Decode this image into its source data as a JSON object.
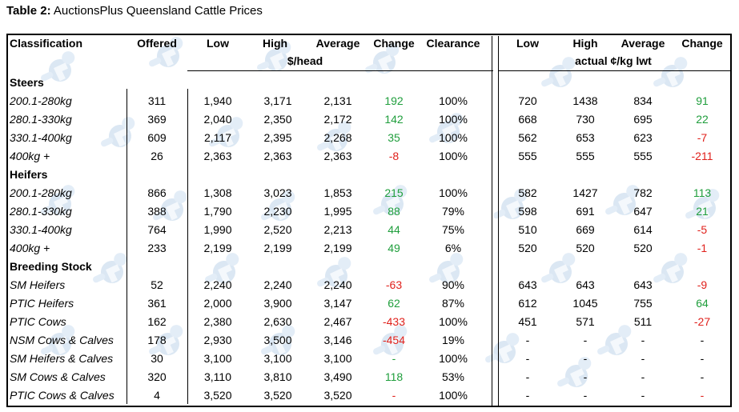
{
  "title": {
    "prefix": "Table 2:",
    "text": " AuctionsPlus Queensland Cattle Prices"
  },
  "headers": {
    "classification": "Classification",
    "offered": "Offered",
    "low": "Low",
    "high": "High",
    "average": "Average",
    "change": "Change",
    "clearance": "Clearance",
    "head_unit": "$/head",
    "low2": "Low",
    "high2": "High",
    "average2": "Average",
    "change2": "Change",
    "kg_unit": "actual ¢/kg lwt"
  },
  "colors": {
    "positive": "#1f9e3c",
    "negative": "#e0211c"
  },
  "watermark_icon": "auctionsplus-logo-watermark",
  "sections": [
    {
      "name": "Steers",
      "rows": [
        {
          "label": "200.1-280kg",
          "offered": "311",
          "low": "1,940",
          "high": "3,171",
          "average": "2,131",
          "change": "192",
          "change_sign": "pos",
          "clearance": "100%",
          "kg_low": "720",
          "kg_high": "1438",
          "kg_avg": "834",
          "kg_change": "91",
          "kg_change_sign": "pos"
        },
        {
          "label": "280.1-330kg",
          "offered": "369",
          "low": "2,040",
          "high": "2,350",
          "average": "2,172",
          "change": "142",
          "change_sign": "pos",
          "clearance": "100%",
          "kg_low": "668",
          "kg_high": "730",
          "kg_avg": "695",
          "kg_change": "22",
          "kg_change_sign": "pos"
        },
        {
          "label": "330.1-400kg",
          "offered": "609",
          "low": "2,117",
          "high": "2,395",
          "average": "2,268",
          "change": "35",
          "change_sign": "pos",
          "clearance": "100%",
          "kg_low": "562",
          "kg_high": "653",
          "kg_avg": "623",
          "kg_change": "-7",
          "kg_change_sign": "neg"
        },
        {
          "label": "400kg +",
          "offered": "26",
          "low": "2,363",
          "high": "2,363",
          "average": "2,363",
          "change": "-8",
          "change_sign": "neg",
          "clearance": "100%",
          "kg_low": "555",
          "kg_high": "555",
          "kg_avg": "555",
          "kg_change": "-211",
          "kg_change_sign": "neg"
        }
      ]
    },
    {
      "name": "Heifers",
      "rows": [
        {
          "label": "200.1-280kg",
          "offered": "866",
          "low": "1,308",
          "high": "3,023",
          "average": "1,853",
          "change": "215",
          "change_sign": "pos",
          "clearance": "100%",
          "kg_low": "582",
          "kg_high": "1427",
          "kg_avg": "782",
          "kg_change": "113",
          "kg_change_sign": "pos"
        },
        {
          "label": "280.1-330kg",
          "offered": "388",
          "low": "1,790",
          "high": "2,230",
          "average": "1,995",
          "change": "88",
          "change_sign": "pos",
          "clearance": "79%",
          "kg_low": "598",
          "kg_high": "691",
          "kg_avg": "647",
          "kg_change": "21",
          "kg_change_sign": "pos"
        },
        {
          "label": "330.1-400kg",
          "offered": "764",
          "low": "1,990",
          "high": "2,520",
          "average": "2,213",
          "change": "44",
          "change_sign": "pos",
          "clearance": "75%",
          "kg_low": "510",
          "kg_high": "669",
          "kg_avg": "614",
          "kg_change": "-5",
          "kg_change_sign": "neg"
        },
        {
          "label": "400kg +",
          "offered": "233",
          "low": "2,199",
          "high": "2,199",
          "average": "2,199",
          "change": "49",
          "change_sign": "pos",
          "clearance": "6%",
          "kg_low": "520",
          "kg_high": "520",
          "kg_avg": "520",
          "kg_change": "-1",
          "kg_change_sign": "neg"
        }
      ]
    },
    {
      "name": "Breeding Stock",
      "rows": [
        {
          "label": "SM Heifers",
          "offered": "52",
          "low": "2,240",
          "high": "2,240",
          "average": "2,240",
          "change": "-63",
          "change_sign": "neg",
          "clearance": "90%",
          "kg_low": "643",
          "kg_high": "643",
          "kg_avg": "643",
          "kg_change": "-9",
          "kg_change_sign": "neg"
        },
        {
          "label": "PTIC Heifers",
          "offered": "361",
          "low": "2,000",
          "high": "3,900",
          "average": "3,147",
          "change": "62",
          "change_sign": "pos",
          "clearance": "87%",
          "kg_low": "612",
          "kg_high": "1045",
          "kg_avg": "755",
          "kg_change": "64",
          "kg_change_sign": "pos"
        },
        {
          "label": "PTIC Cows",
          "offered": "162",
          "low": "2,380",
          "high": "2,630",
          "average": "2,467",
          "change": "-433",
          "change_sign": "neg",
          "clearance": "100%",
          "kg_low": "451",
          "kg_high": "571",
          "kg_avg": "511",
          "kg_change": "-27",
          "kg_change_sign": "neg"
        },
        {
          "label": "NSM Cows & Calves",
          "offered": "178",
          "low": "2,930",
          "high": "3,500",
          "average": "3,146",
          "change": "-454",
          "change_sign": "neg",
          "clearance": "19%",
          "kg_low": "-",
          "kg_high": "-",
          "kg_avg": "-",
          "kg_change": "-",
          "kg_change_sign": "none"
        },
        {
          "label": "SM Heifers & Calves",
          "offered": "30",
          "low": "3,100",
          "high": "3,100",
          "average": "3,100",
          "change": "-",
          "change_sign": "pos",
          "clearance": "100%",
          "kg_low": "-",
          "kg_high": "-",
          "kg_avg": "-",
          "kg_change": "-",
          "kg_change_sign": "none"
        },
        {
          "label": "SM Cows & Calves",
          "offered": "320",
          "low": "3,110",
          "high": "3,810",
          "average": "3,490",
          "change": "118",
          "change_sign": "pos",
          "clearance": "53%",
          "kg_low": "-",
          "kg_high": "-",
          "kg_avg": "-",
          "kg_change": "-",
          "kg_change_sign": "none"
        },
        {
          "label": "PTIC Cows & Calves",
          "offered": "4",
          "low": "3,520",
          "high": "3,520",
          "average": "3,520",
          "change": "-",
          "change_sign": "neg",
          "clearance": "100%",
          "kg_low": "-",
          "kg_high": "-",
          "kg_avg": "-",
          "kg_change": "-",
          "kg_change_sign": "neg"
        }
      ]
    }
  ]
}
